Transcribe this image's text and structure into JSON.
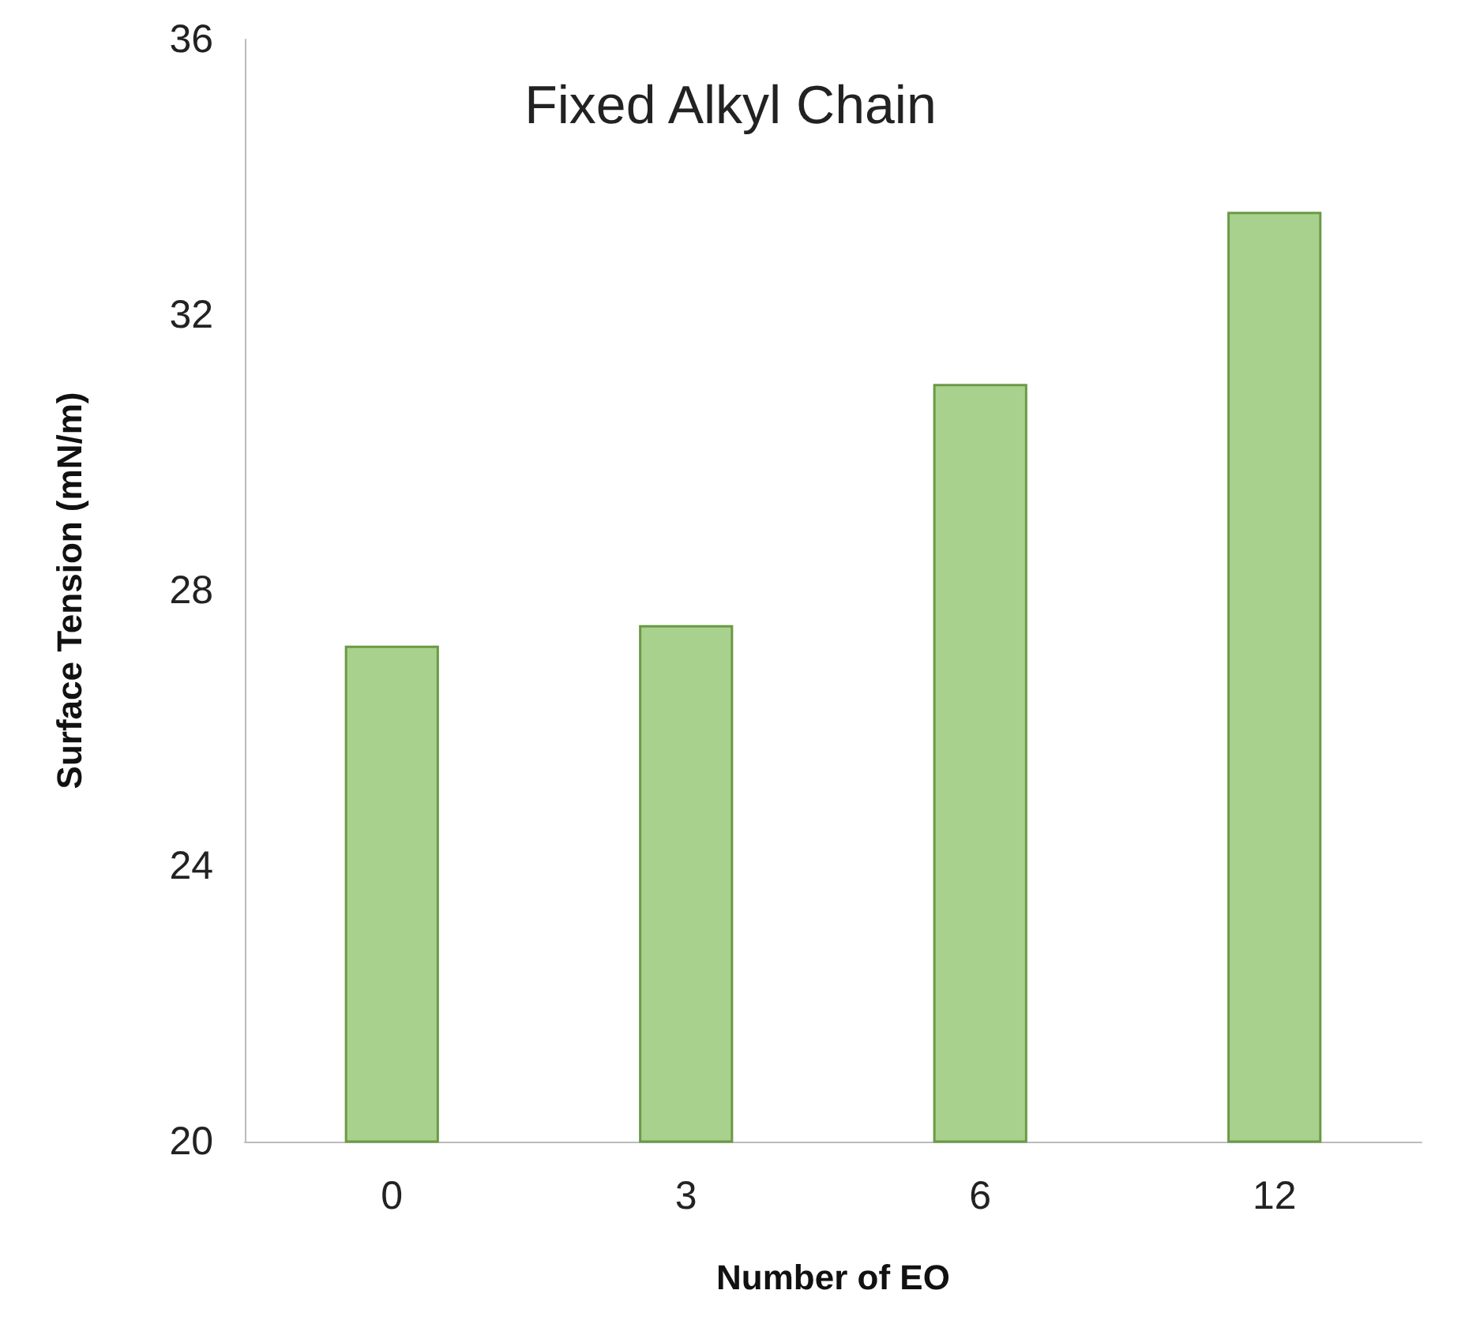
{
  "chart_data": {
    "type": "bar",
    "title": "Fixed Alkyl Chain",
    "xlabel": "Number of EO",
    "ylabel": "Surface Tension (mN/m)",
    "categories": [
      "0",
      "3",
      "6",
      "12"
    ],
    "values": [
      27.2,
      27.5,
      31.0,
      33.5
    ],
    "color": "#a9d18e",
    "ylim": [
      20,
      36
    ],
    "yticks": [
      20,
      24,
      28,
      32,
      36
    ],
    "grid": false
  }
}
